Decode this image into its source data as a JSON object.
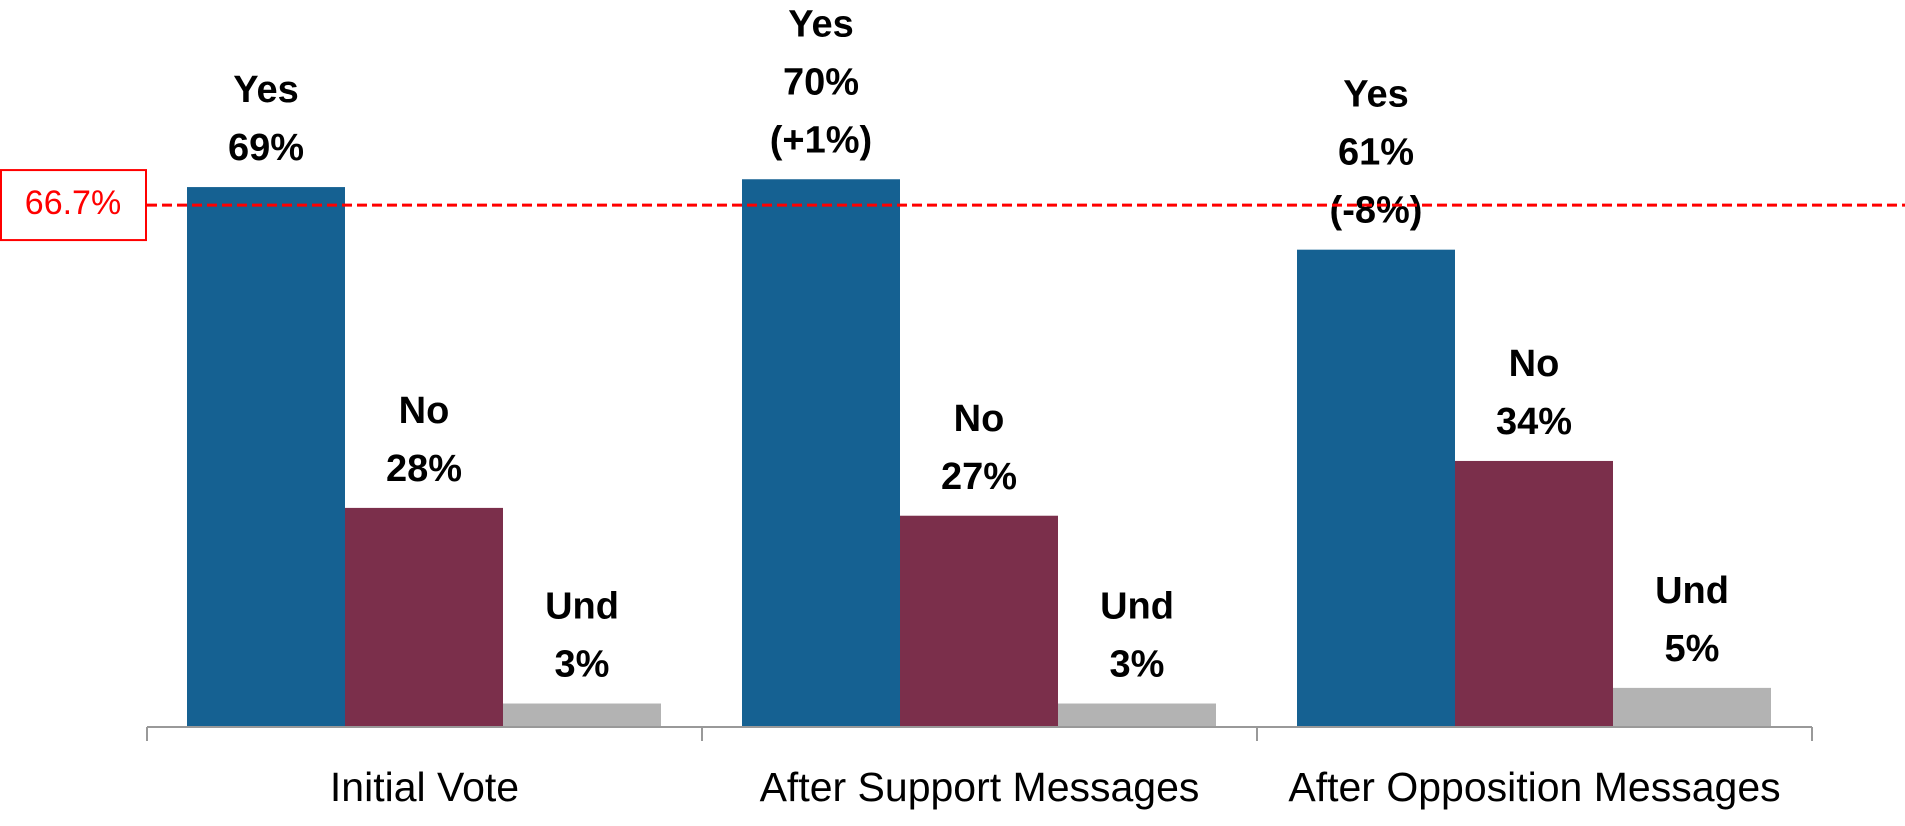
{
  "chart_data": {
    "type": "bar",
    "categories": [
      "Initial Vote",
      "After Support Messages",
      "After Opposition Messages"
    ],
    "series": [
      {
        "name": "Yes",
        "color": "#156192",
        "values": [
          69,
          70,
          61
        ],
        "value_labels": [
          "69%",
          "70%",
          "61%"
        ],
        "change_labels": [
          null,
          "(+1%)",
          "(-8%)"
        ],
        "change_colors": [
          null,
          "#00b050",
          "#ff0000"
        ]
      },
      {
        "name": "No",
        "color": "#7b2f4b",
        "values": [
          28,
          27,
          34
        ],
        "value_labels": [
          "28%",
          "27%",
          "34%"
        ]
      },
      {
        "name": "Und",
        "color": "#b3b3b3",
        "values": [
          3,
          3,
          5
        ],
        "value_labels": [
          "3%",
          "3%",
          "5%"
        ]
      }
    ],
    "threshold": {
      "value": 66.7,
      "label": "66.7%",
      "color": "#ff0000"
    }
  }
}
